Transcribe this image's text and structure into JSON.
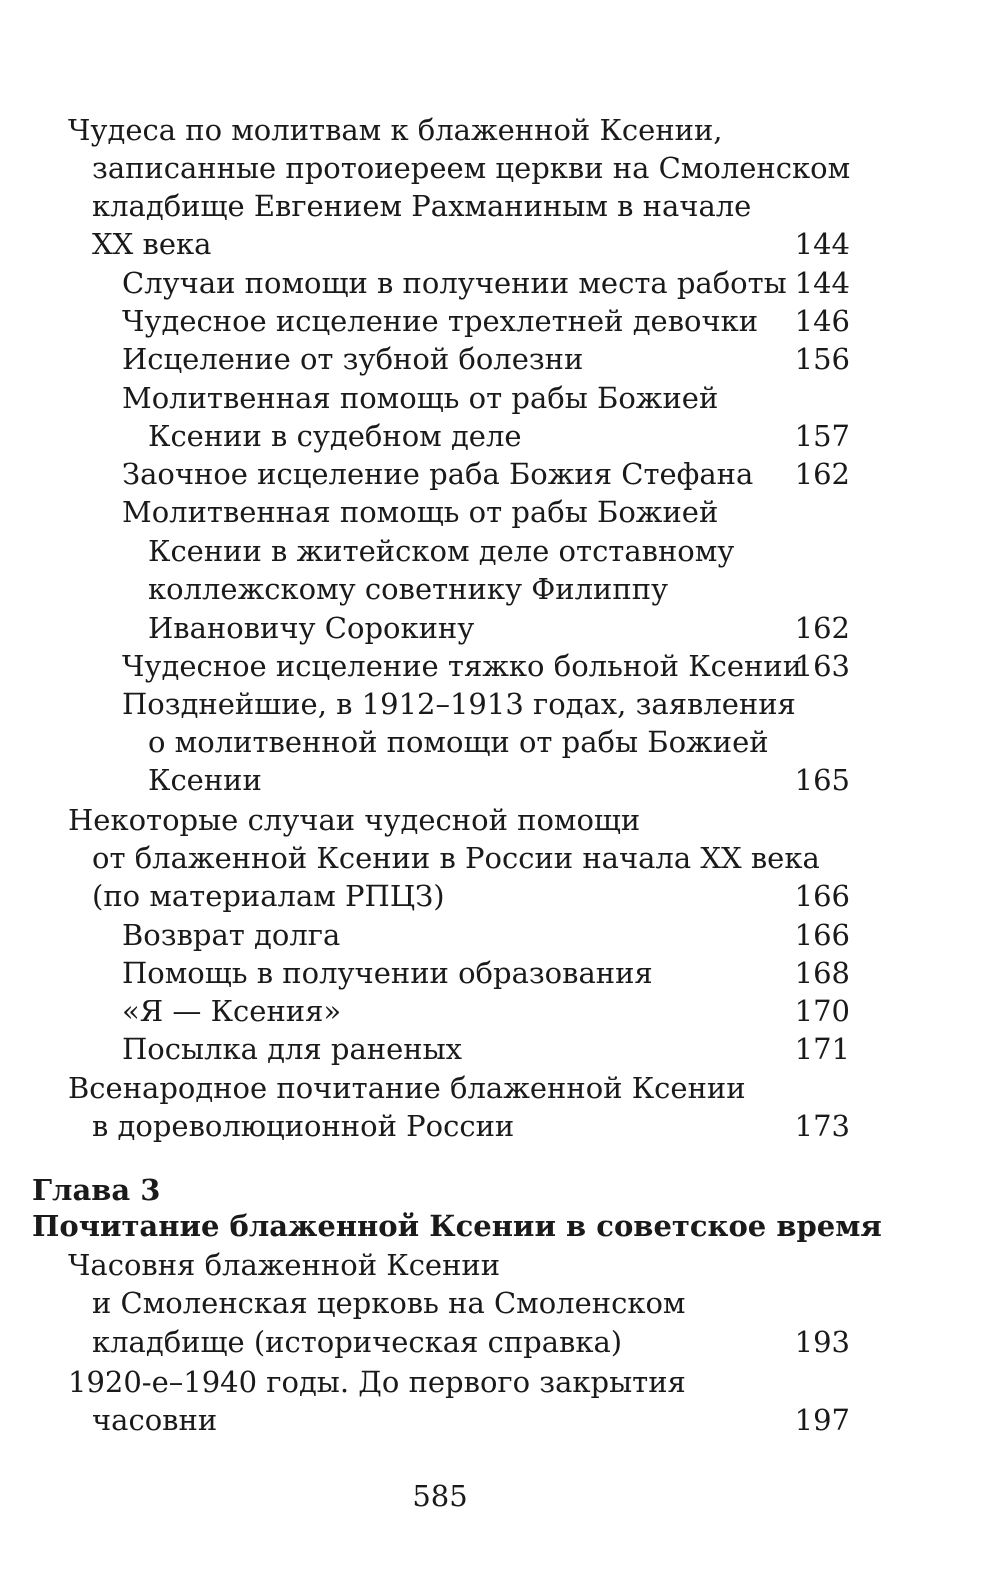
{
  "toc": [
    {
      "text": "Чудеса по молитвам к блаженной Ксении,",
      "indent": 0,
      "page": ""
    },
    {
      "text": "записанные протоиереем церкви на Смоленском",
      "indent": 1,
      "page": ""
    },
    {
      "text": "кладбище Евгением Рахманиным в начале",
      "indent": 1,
      "page": ""
    },
    {
      "text": "XX века",
      "indent": 1,
      "page": "144"
    },
    {
      "text": "Случаи помощи в получении места работы",
      "indent": 2,
      "page": "144"
    },
    {
      "text": "Чудесное исцеление трехлетней девочки",
      "indent": 2,
      "page": "146"
    },
    {
      "text": "Исцеление от зубной болезни",
      "indent": 2,
      "page": "156"
    },
    {
      "text": "Молитвенная помощь от рабы Божией",
      "indent": 2,
      "page": ""
    },
    {
      "text": "Ксении в судебном деле",
      "indent": 3,
      "page": "157"
    },
    {
      "text": "Заочное исцеление раба Божия Стефана",
      "indent": 2,
      "page": "162"
    },
    {
      "text": "Молитвенная помощь от рабы Божией",
      "indent": 2,
      "page": ""
    },
    {
      "text": "Ксении в житейском деле отставному",
      "indent": 3,
      "page": ""
    },
    {
      "text": "коллежскому советнику Филиппу",
      "indent": 3,
      "page": ""
    },
    {
      "text": "Ивановичу Сорокину",
      "indent": 3,
      "page": "162"
    },
    {
      "text": "Чудесное исцеление тяжко больной Ксении",
      "indent": 2,
      "page": "163"
    },
    {
      "text": "Позднейшие, в 1912–1913 годах, заявления",
      "indent": 2,
      "page": ""
    },
    {
      "text": "о молитвенной помощи от рабы Божией",
      "indent": 3,
      "page": ""
    },
    {
      "text": "Ксении",
      "indent": 3,
      "page": "165"
    },
    {
      "text": "Некоторые случаи чудесной помощи",
      "indent": 0,
      "page": ""
    },
    {
      "text": "от блаженной Ксении в России начала XX века",
      "indent": 1,
      "page": ""
    },
    {
      "text": "(по материалам РПЦЗ)",
      "indent": 1,
      "page": "166"
    },
    {
      "text": "Возврат долга",
      "indent": 2,
      "page": "166"
    },
    {
      "text": "Помощь в получении образования",
      "indent": 2,
      "page": "168"
    },
    {
      "text": "«Я — Ксения»",
      "indent": 2,
      "page": "170"
    },
    {
      "text": "Посылка для раненых",
      "indent": 2,
      "page": "171"
    },
    {
      "text": "Всенародное почитание блаженной Ксении",
      "indent": 0,
      "page": ""
    },
    {
      "text": "в дореволюционной России",
      "indent": 1,
      "page": "173"
    },
    {
      "text": "Глава 3",
      "indent": "h",
      "page": "",
      "bold": true
    },
    {
      "text": "Почитание блаженной Ксении в советское время",
      "indent": "h",
      "page": "",
      "bold": true
    },
    {
      "text": "Часовня блаженной Ксении",
      "indent": 0,
      "page": ""
    },
    {
      "text": "и Смоленская церковь на Смоленском",
      "indent": 1,
      "page": ""
    },
    {
      "text": "кладбище (историческая справка)",
      "indent": 1,
      "page": "193"
    },
    {
      "text": "1920-е–1940 годы. До первого закрытия",
      "indent": 0,
      "page": ""
    },
    {
      "text": "часовни",
      "indent": 1,
      "page": "197"
    }
  ],
  "folio": "585"
}
